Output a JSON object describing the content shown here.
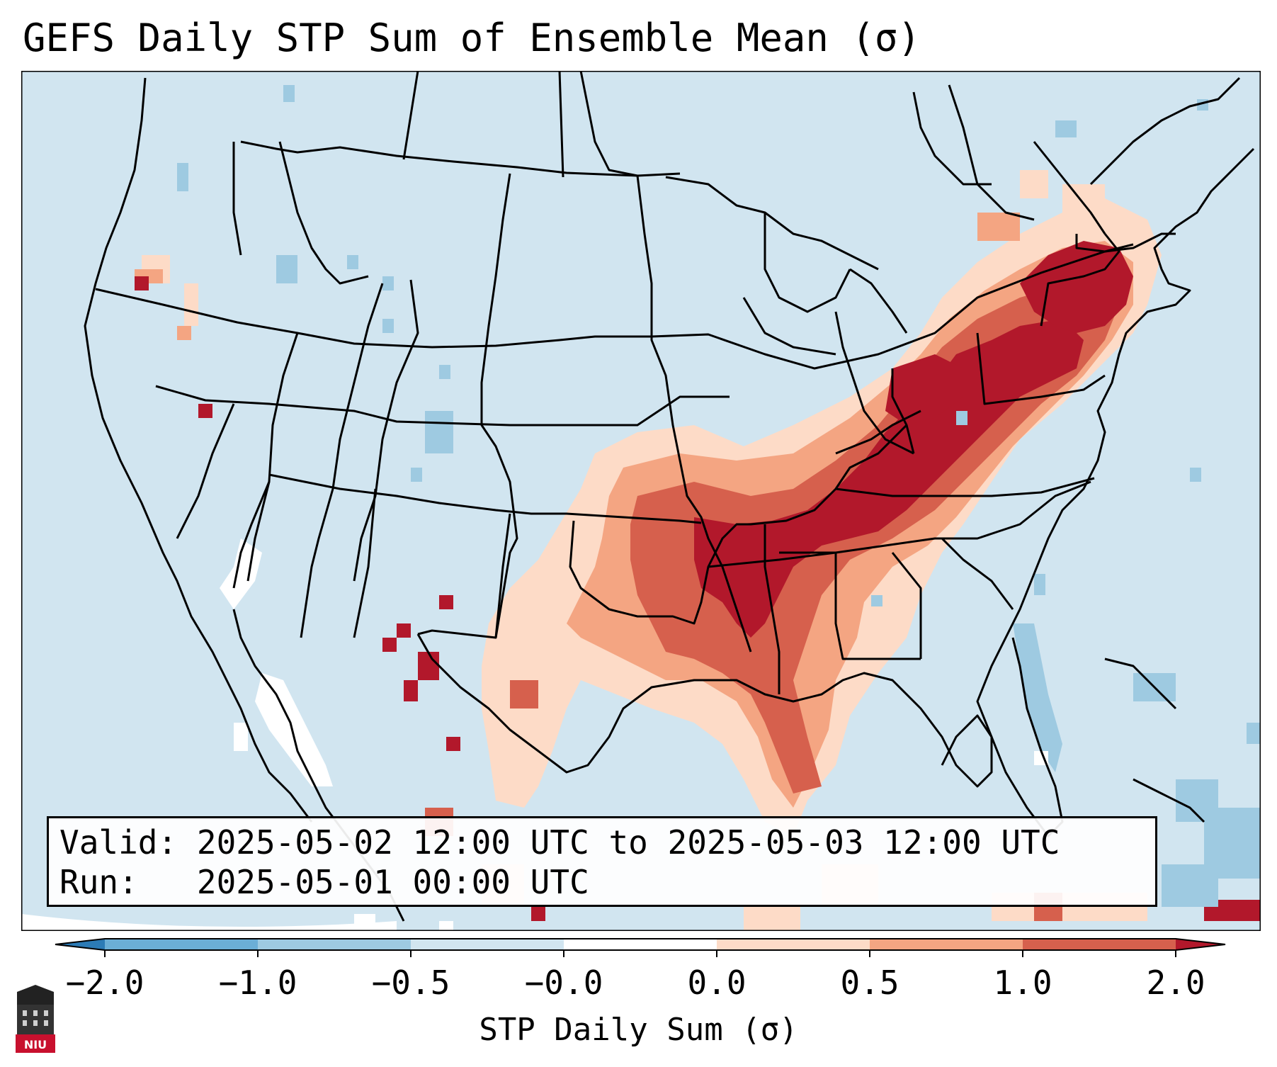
{
  "title": "GEFS Daily STP Sum of Ensemble Mean (σ)",
  "info": {
    "valid_label": "Valid:",
    "valid_text": "2025-05-02 12:00 UTC to 2025-05-03 12:00 UTC",
    "run_label": "Run:",
    "run_text": "2025-05-01 00:00 UTC"
  },
  "colorbar": {
    "label": "STP Daily Sum (σ)",
    "ticks": [
      "−2.0",
      "−1.0",
      "−0.5",
      "−0.0",
      "0.0",
      "0.5",
      "1.0",
      "2.0"
    ],
    "bin_colors": [
      "#2c7bb6",
      "#6baed6",
      "#9ecae1",
      "#d1e5f0",
      "#ffffff",
      "#fddbc7",
      "#f4a582",
      "#d6604d",
      "#b2182b"
    ]
  },
  "colors": {
    "ocean_background": "#d1e5f0",
    "lowest": "#2c7bb6",
    "highest": "#b2182b"
  },
  "logo": {
    "text": "NIU",
    "icon": "niu-building-icon"
  }
}
